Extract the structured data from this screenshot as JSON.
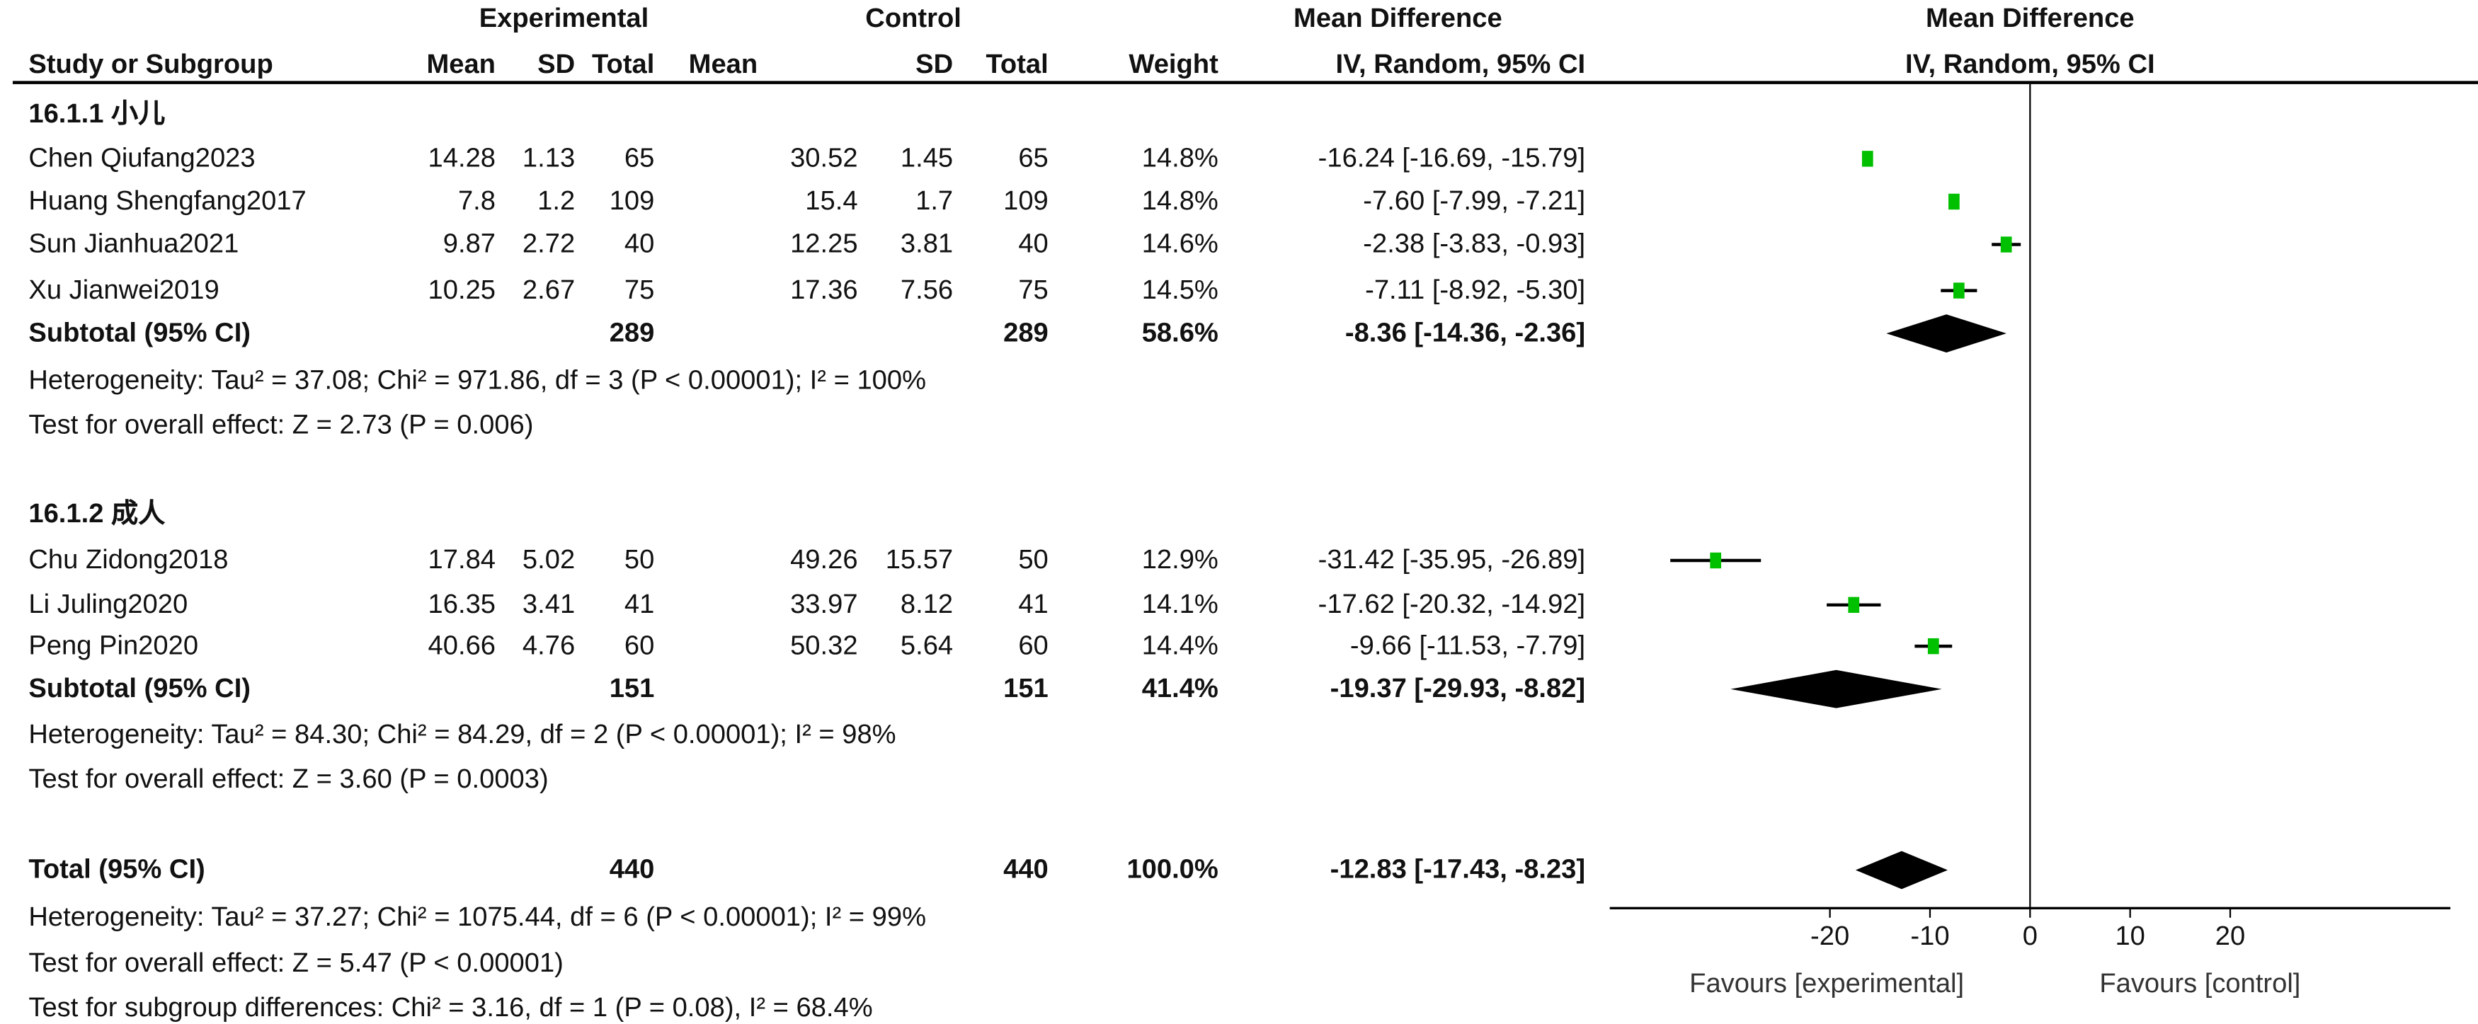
{
  "header": {
    "experimental": "Experimental",
    "control": "Control",
    "md_title": "Mean Difference",
    "md_sub": "IV, Random, 95% CI",
    "plot_title": "Mean Difference",
    "plot_sub": "IV, Random, 95% CI",
    "study": "Study or Subgroup",
    "mean": "Mean",
    "sd": "SD",
    "total": "Total",
    "weight": "Weight"
  },
  "chart_data": {
    "type": "forest",
    "x_ticks": [
      -20,
      -10,
      0,
      10,
      20
    ],
    "xlim": [
      -42,
      42
    ],
    "favours_left": "Favours [experimental]",
    "favours_right": "Favours [control]",
    "square_color": "#00c000",
    "diamond_color": "#000000",
    "groups": [
      {
        "title": "16.1.1 小儿",
        "studies": [
          {
            "name": "Chen Qiufang2023",
            "e_mean": "14.28",
            "e_sd": "1.13",
            "e_total": "65",
            "c_mean": "30.52",
            "c_sd": "1.45",
            "c_total": "65",
            "weight": "14.8%",
            "ci_text": "-16.24 [-16.69, -15.79]",
            "md": -16.24,
            "lo": -16.69,
            "hi": -15.79
          },
          {
            "name": "Huang Shengfang2017",
            "e_mean": "7.8",
            "e_sd": "1.2",
            "e_total": "109",
            "c_mean": "15.4",
            "c_sd": "1.7",
            "c_total": "109",
            "weight": "14.8%",
            "ci_text": "-7.60 [-7.99, -7.21]",
            "md": -7.6,
            "lo": -7.99,
            "hi": -7.21
          },
          {
            "name": "Sun Jianhua2021",
            "e_mean": "9.87",
            "e_sd": "2.72",
            "e_total": "40",
            "c_mean": "12.25",
            "c_sd": "3.81",
            "c_total": "40",
            "weight": "14.6%",
            "ci_text": "-2.38 [-3.83, -0.93]",
            "md": -2.38,
            "lo": -3.83,
            "hi": -0.93
          },
          {
            "name": "Xu Jianwei2019",
            "e_mean": "10.25",
            "e_sd": "2.67",
            "e_total": "75",
            "c_mean": "17.36",
            "c_sd": "7.56",
            "c_total": "75",
            "weight": "14.5%",
            "ci_text": "-7.11 [-8.92, -5.30]",
            "md": -7.11,
            "lo": -8.92,
            "hi": -5.3
          }
        ],
        "subtotal": {
          "label": "Subtotal (95% CI)",
          "e_total": "289",
          "c_total": "289",
          "weight": "58.6%",
          "ci_text": "-8.36 [-14.36, -2.36]",
          "md": -8.36,
          "lo": -14.36,
          "hi": -2.36
        },
        "heterogeneity": "Heterogeneity: Tau² = 37.08; Chi² = 971.86, df = 3 (P < 0.00001); I² = 100%",
        "overall": "Test for overall effect: Z = 2.73 (P = 0.006)"
      },
      {
        "title": "16.1.2 成人",
        "studies": [
          {
            "name": "Chu Zidong2018",
            "e_mean": "17.84",
            "e_sd": "5.02",
            "e_total": "50",
            "c_mean": "49.26",
            "c_sd": "15.57",
            "c_total": "50",
            "weight": "12.9%",
            "ci_text": "-31.42 [-35.95, -26.89]",
            "md": -31.42,
            "lo": -35.95,
            "hi": -26.89
          },
          {
            "name": "Li Juling2020",
            "e_mean": "16.35",
            "e_sd": "3.41",
            "e_total": "41",
            "c_mean": "33.97",
            "c_sd": "8.12",
            "c_total": "41",
            "weight": "14.1%",
            "ci_text": "-17.62 [-20.32, -14.92]",
            "md": -17.62,
            "lo": -20.32,
            "hi": -14.92
          },
          {
            "name": "Peng Pin2020",
            "e_mean": "40.66",
            "e_sd": "4.76",
            "e_total": "60",
            "c_mean": "50.32",
            "c_sd": "5.64",
            "c_total": "60",
            "weight": "14.4%",
            "ci_text": "-9.66 [-11.53, -7.79]",
            "md": -9.66,
            "lo": -11.53,
            "hi": -7.79
          }
        ],
        "subtotal": {
          "label": "Subtotal (95% CI)",
          "e_total": "151",
          "c_total": "151",
          "weight": "41.4%",
          "ci_text": "-19.37 [-29.93, -8.82]",
          "md": -19.37,
          "lo": -29.93,
          "hi": -8.82
        },
        "heterogeneity": "Heterogeneity: Tau² = 84.30; Chi² = 84.29, df = 2 (P < 0.00001); I² = 98%",
        "overall": "Test for overall effect: Z = 3.60 (P = 0.0003)"
      }
    ],
    "total": {
      "label": "Total (95% CI)",
      "e_total": "440",
      "c_total": "440",
      "weight": "100.0%",
      "ci_text": "-12.83 [-17.43, -8.23]",
      "md": -12.83,
      "lo": -17.43,
      "hi": -8.23
    },
    "total_heterogeneity": "Heterogeneity: Tau² = 37.27; Chi² = 1075.44, df = 6 (P < 0.00001); I² = 99%",
    "total_overall": "Test for overall effect: Z = 5.47 (P < 0.00001)",
    "subgroup_diff": "Test for subgroup differences: Chi² = 3.16, df = 1 (P = 0.08), I² = 68.4%"
  }
}
